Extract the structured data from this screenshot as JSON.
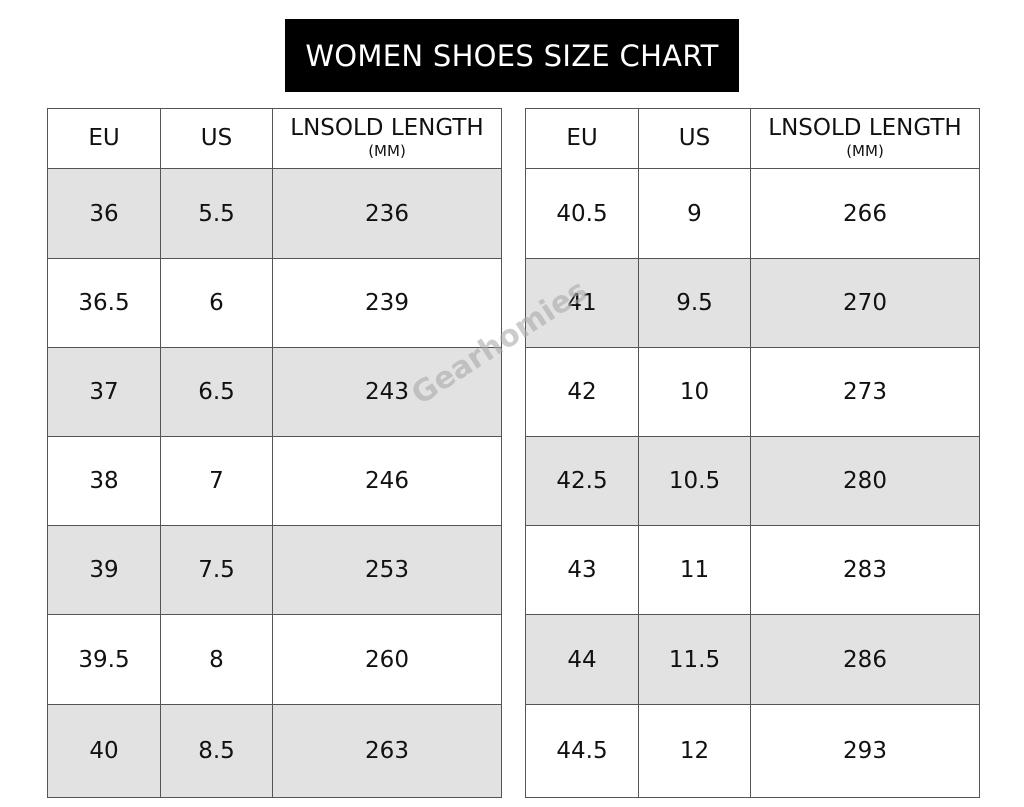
{
  "title": "WOMEN SHOES SIZE CHART",
  "watermark": "Gearhomies",
  "tables": [
    {
      "columns": [
        "EU",
        "US",
        "LNSOLD LENGTH"
      ],
      "column_unit": "(MM)",
      "rows": [
        [
          "36",
          "5.5",
          "236"
        ],
        [
          "36.5",
          "6",
          "239"
        ],
        [
          "37",
          "6.5",
          "243"
        ],
        [
          "38",
          "7",
          "246"
        ],
        [
          "39",
          "7.5",
          "253"
        ],
        [
          "39.5",
          "8",
          "260"
        ],
        [
          "40",
          "8.5",
          "263"
        ]
      ]
    },
    {
      "columns": [
        "EU",
        "US",
        "LNSOLD LENGTH"
      ],
      "column_unit": "(MM)",
      "rows": [
        [
          "40.5",
          "9",
          "266"
        ],
        [
          "41",
          "9.5",
          "270"
        ],
        [
          "42",
          "10",
          "273"
        ],
        [
          "42.5",
          "10.5",
          "280"
        ],
        [
          "43",
          "11",
          "283"
        ],
        [
          "44",
          "11.5",
          "286"
        ],
        [
          "44.5",
          "12",
          "293"
        ]
      ]
    }
  ]
}
